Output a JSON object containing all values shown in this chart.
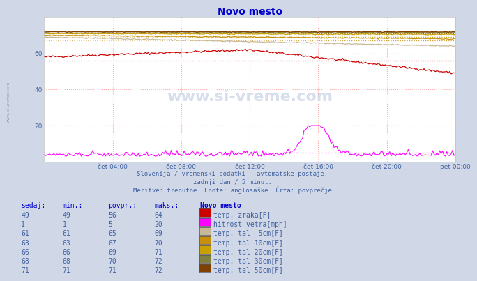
{
  "title": "Novo mesto",
  "background_color": "#d0d8e8",
  "plot_bg_color": "#ffffff",
  "grid_color": "#ffaaaa",
  "xlim": [
    0,
    288
  ],
  "ylim": [
    0,
    80
  ],
  "yticks": [
    20,
    40,
    60
  ],
  "xtick_labels": [
    "čet 04:00",
    "čet 08:00",
    "čet 12:00",
    "čet 16:00",
    "čet 20:00",
    "pet 00:00"
  ],
  "xtick_positions": [
    48,
    96,
    144,
    192,
    240,
    288
  ],
  "subtitle1": "Slovenija / vremenski podatki - avtomatske postaje.",
  "subtitle2": "zadnji dan / 5 minut.",
  "subtitle3": "Meritve: trenutne  Enote: anglosaške  Črta: povprečje",
  "watermark": "www.si-vreme.com",
  "series": {
    "temp_zraka": {
      "color": "#cc0000",
      "avg": 56,
      "min": 49,
      "max": 64,
      "sedaj": 49,
      "label": "temp. zraka[F]",
      "legend_color": "#cc0000"
    },
    "hitrost_vetra": {
      "color": "#ff00ff",
      "avg": 5,
      "min": 1,
      "max": 20,
      "sedaj": 1,
      "label": "hitrost vetra[mph]",
      "legend_color": "#ff00ff"
    },
    "temp_tal_5cm": {
      "color": "#c8b89a",
      "avg": 65,
      "min": 61,
      "max": 69,
      "sedaj": 61,
      "label": "temp. tal  5cm[F]",
      "legend_color": "#c8b89a"
    },
    "temp_tal_10cm": {
      "color": "#c8900a",
      "avg": 67,
      "min": 63,
      "max": 70,
      "sedaj": 63,
      "label": "temp. tal 10cm[F]",
      "legend_color": "#c8900a"
    },
    "temp_tal_20cm": {
      "color": "#c8a000",
      "avg": 69,
      "min": 66,
      "max": 71,
      "sedaj": 66,
      "label": "temp. tal 20cm[F]",
      "legend_color": "#c8a000"
    },
    "temp_tal_30cm": {
      "color": "#808040",
      "avg": 70,
      "min": 68,
      "max": 72,
      "sedaj": 68,
      "label": "temp. tal 30cm[F]",
      "legend_color": "#808040"
    },
    "temp_tal_50cm": {
      "color": "#804000",
      "avg": 71,
      "min": 71,
      "max": 72,
      "sedaj": 71,
      "label": "temp. tal 50cm[F]",
      "legend_color": "#804000"
    }
  },
  "table_headers": [
    "sedaj:",
    "min.:",
    "povpr.:",
    "maks.:",
    "Novo mesto"
  ],
  "table_data": [
    [
      49,
      49,
      56,
      64
    ],
    [
      1,
      1,
      5,
      20
    ],
    [
      61,
      61,
      65,
      69
    ],
    [
      63,
      63,
      67,
      70
    ],
    [
      66,
      66,
      69,
      71
    ],
    [
      68,
      68,
      70,
      72
    ],
    [
      71,
      71,
      71,
      72
    ]
  ]
}
